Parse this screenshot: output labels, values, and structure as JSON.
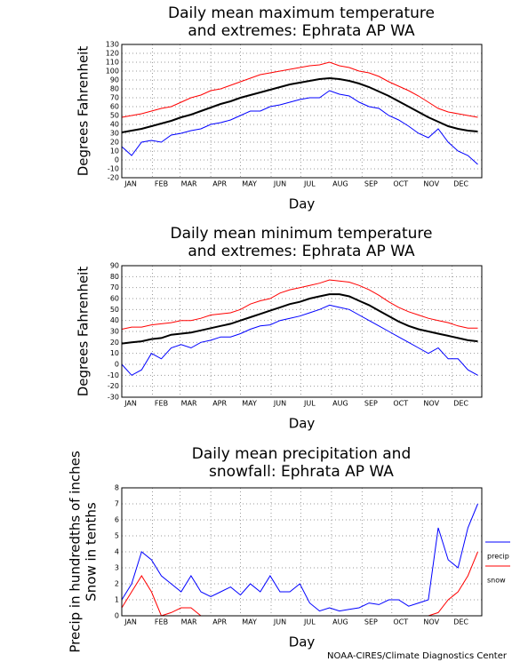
{
  "chart_data": [
    {
      "type": "line",
      "title": [
        "Daily mean maximum temperature",
        "and extremes: Ephrata AP WA"
      ],
      "x_label": "Day",
      "y_label": [
        "Degrees Fahrenheit"
      ],
      "x": [
        1,
        11,
        21,
        31,
        41,
        51,
        61,
        71,
        81,
        91,
        101,
        111,
        121,
        131,
        141,
        151,
        161,
        171,
        181,
        191,
        201,
        211,
        221,
        231,
        241,
        251,
        261,
        271,
        281,
        291,
        301,
        311,
        321,
        331,
        341,
        351,
        361
      ],
      "xlim": [
        1,
        365
      ],
      "xticks": [
        {
          "value": 1,
          "label": "JAN"
        },
        {
          "value": 32,
          "label": "FEB"
        },
        {
          "value": 60,
          "label": "MAR"
        },
        {
          "value": 91,
          "label": "APR"
        },
        {
          "value": 121,
          "label": "MAY"
        },
        {
          "value": 152,
          "label": "JUN"
        },
        {
          "value": 182,
          "label": "JUL"
        },
        {
          "value": 213,
          "label": "AUG"
        },
        {
          "value": 244,
          "label": "SEP"
        },
        {
          "value": 274,
          "label": "OCT"
        },
        {
          "value": 305,
          "label": "NOV"
        },
        {
          "value": 335,
          "label": "DEC"
        }
      ],
      "ylim": [
        -20,
        130
      ],
      "yticks": [
        -20,
        -10,
        0,
        10,
        20,
        30,
        40,
        50,
        60,
        70,
        80,
        90,
        100,
        110,
        120,
        130
      ],
      "grid": true,
      "series": [
        {
          "color": "#ff0000",
          "values": [
            48,
            50,
            52,
            55,
            58,
            60,
            65,
            70,
            73,
            78,
            80,
            84,
            88,
            92,
            96,
            98,
            100,
            102,
            104,
            106,
            107,
            110,
            106,
            104,
            100,
            98,
            94,
            88,
            83,
            78,
            72,
            65,
            58,
            54,
            52,
            50,
            48
          ]
        },
        {
          "color": "#000000",
          "values": [
            31,
            33,
            35,
            38,
            41,
            44,
            48,
            51,
            55,
            59,
            63,
            66,
            70,
            73,
            76,
            79,
            82,
            85,
            87,
            89,
            91,
            92,
            91,
            89,
            86,
            82,
            77,
            72,
            66,
            60,
            54,
            48,
            43,
            38,
            35,
            33,
            32
          ]
        },
        {
          "color": "#0000ff",
          "values": [
            15,
            5,
            20,
            22,
            20,
            28,
            30,
            33,
            35,
            40,
            42,
            45,
            50,
            55,
            55,
            60,
            62,
            65,
            68,
            70,
            70,
            78,
            74,
            72,
            65,
            60,
            58,
            50,
            45,
            38,
            30,
            25,
            35,
            20,
            10,
            5,
            -5
          ]
        }
      ]
    },
    {
      "type": "line",
      "title": [
        "Daily mean minimum temperature",
        "and extremes: Ephrata AP WA"
      ],
      "x_label": "Day",
      "y_label": [
        "Degrees Fahrenheit"
      ],
      "x": [
        1,
        11,
        21,
        31,
        41,
        51,
        61,
        71,
        81,
        91,
        101,
        111,
        121,
        131,
        141,
        151,
        161,
        171,
        181,
        191,
        201,
        211,
        221,
        231,
        241,
        251,
        261,
        271,
        281,
        291,
        301,
        311,
        321,
        331,
        341,
        351,
        361
      ],
      "xlim": [
        1,
        365
      ],
      "xticks": [
        {
          "value": 1,
          "label": "JAN"
        },
        {
          "value": 32,
          "label": "FEB"
        },
        {
          "value": 60,
          "label": "MAR"
        },
        {
          "value": 91,
          "label": "APR"
        },
        {
          "value": 121,
          "label": "MAY"
        },
        {
          "value": 152,
          "label": "JUN"
        },
        {
          "value": 182,
          "label": "JUL"
        },
        {
          "value": 213,
          "label": "AUG"
        },
        {
          "value": 244,
          "label": "SEP"
        },
        {
          "value": 274,
          "label": "OCT"
        },
        {
          "value": 305,
          "label": "NOV"
        },
        {
          "value": 335,
          "label": "DEC"
        }
      ],
      "ylim": [
        -30,
        90
      ],
      "yticks": [
        -30,
        -20,
        -10,
        0,
        10,
        20,
        30,
        40,
        50,
        60,
        70,
        80,
        90
      ],
      "grid": true,
      "series": [
        {
          "color": "#ff0000",
          "values": [
            32,
            34,
            34,
            36,
            37,
            38,
            40,
            40,
            42,
            45,
            46,
            47,
            50,
            55,
            58,
            60,
            65,
            68,
            70,
            72,
            74,
            77,
            76,
            75,
            72,
            68,
            63,
            57,
            52,
            48,
            45,
            42,
            40,
            38,
            35,
            33,
            33
          ]
        },
        {
          "color": "#000000",
          "values": [
            19,
            20,
            21,
            23,
            24,
            27,
            28,
            29,
            31,
            33,
            35,
            37,
            40,
            43,
            46,
            49,
            52,
            55,
            57,
            60,
            62,
            64,
            64,
            62,
            58,
            54,
            49,
            44,
            39,
            35,
            32,
            30,
            28,
            26,
            24,
            22,
            21
          ]
        },
        {
          "color": "#0000ff",
          "values": [
            0,
            -10,
            -5,
            10,
            5,
            15,
            18,
            15,
            20,
            22,
            25,
            25,
            28,
            32,
            35,
            36,
            40,
            42,
            44,
            47,
            50,
            54,
            52,
            50,
            45,
            40,
            35,
            30,
            25,
            20,
            15,
            10,
            15,
            5,
            5,
            -5,
            -10
          ]
        }
      ]
    },
    {
      "type": "line",
      "title": [
        "Daily mean precipitation and",
        "snowfall: Ephrata AP WA"
      ],
      "x_label": "Day",
      "y_label": [
        "Precip in hundredths of inches",
        "Snow in tenths"
      ],
      "x": [
        1,
        11,
        21,
        31,
        41,
        51,
        61,
        71,
        81,
        91,
        101,
        111,
        121,
        131,
        141,
        151,
        161,
        171,
        181,
        191,
        201,
        211,
        221,
        231,
        241,
        251,
        261,
        271,
        281,
        291,
        301,
        311,
        321,
        331,
        341,
        351,
        361
      ],
      "xlim": [
        1,
        365
      ],
      "xticks": [
        {
          "value": 1,
          "label": "JAN"
        },
        {
          "value": 32,
          "label": "FEB"
        },
        {
          "value": 60,
          "label": "MAR"
        },
        {
          "value": 91,
          "label": "APR"
        },
        {
          "value": 121,
          "label": "MAY"
        },
        {
          "value": 152,
          "label": "JUN"
        },
        {
          "value": 182,
          "label": "JUL"
        },
        {
          "value": 213,
          "label": "AUG"
        },
        {
          "value": 244,
          "label": "SEP"
        },
        {
          "value": 274,
          "label": "OCT"
        },
        {
          "value": 305,
          "label": "NOV"
        },
        {
          "value": 335,
          "label": "DEC"
        }
      ],
      "ylim": [
        0,
        8
      ],
      "yticks": [
        0,
        1,
        2,
        3,
        4,
        5,
        6,
        7,
        8
      ],
      "grid": true,
      "legend": "right",
      "series": [
        {
          "name": "precip",
          "color": "#0000ff",
          "values": [
            1,
            2,
            4,
            3.5,
            2.5,
            2,
            1.5,
            2.5,
            1.5,
            1.2,
            1.5,
            1.8,
            1.3,
            2,
            1.5,
            2.5,
            1.5,
            1.5,
            2,
            0.8,
            0.3,
            0.5,
            0.3,
            0.4,
            0.5,
            0.8,
            0.7,
            1,
            1,
            0.6,
            0.8,
            1,
            5.5,
            3.5,
            3,
            5.5,
            7
          ]
        },
        {
          "name": "snow",
          "color": "#ff0000",
          "values": [
            0.5,
            1.5,
            2.5,
            1.5,
            0,
            0.2,
            0.5,
            0.5,
            0,
            0,
            0,
            0,
            0,
            0,
            0,
            0,
            0,
            0,
            0,
            0,
            0,
            0,
            0,
            0,
            0,
            0,
            0,
            0,
            0,
            0,
            0,
            0,
            0.2,
            1,
            1.5,
            2.5,
            4
          ]
        }
      ]
    }
  ],
  "credit": "NOAA-CIRES/Climate Diagnostics Center"
}
